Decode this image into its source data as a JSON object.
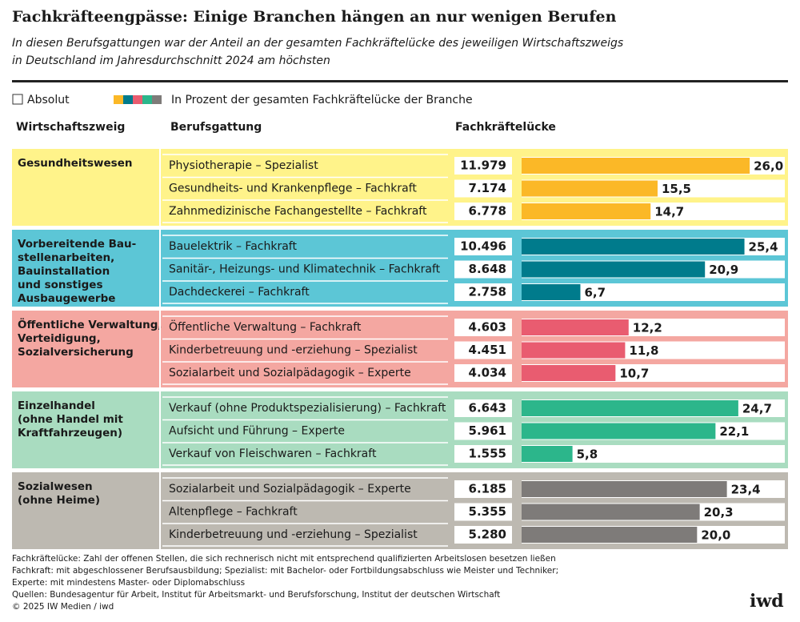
{
  "chart_data": {
    "type": "bar",
    "title": "Fachkräfteengpässe: Einige Branchen hängen an nur wenigen Berufen",
    "subtitle": [
      "In diesen Berufsgattungen war der Anteil an der gesamten Fachkräftelücke des jeweiligen Wirtschaftszweigs",
      "in Deutschland im Jahresdurchschnitt 2024 am höchsten"
    ],
    "legend": {
      "absolute": "Absolut",
      "percent": "In Prozent der gesamten Fachkräftelücke der Branche"
    },
    "headers": [
      "Wirtschaftszweig",
      "Berufsgattung",
      "Fachkräftelücke"
    ],
    "xlim": [
      0,
      30
    ],
    "groups": [
      {
        "name": [
          "Gesundheitswesen"
        ],
        "color": "#fbb827",
        "background": "#fff38a",
        "categories": [
          "Physiotherapie – Spezialist",
          "Gesundheits- und Krankenpflege – Fachkraft",
          "Zahnmedizinische Fachangestellte – Fachkraft"
        ],
        "absolute": [
          "11.979",
          "7.174",
          "6.778"
        ],
        "values": [
          26.0,
          15.5,
          14.7
        ],
        "value_labels": [
          "26,0",
          "15,5",
          "14,7"
        ]
      },
      {
        "name": [
          "Vorbereitende Bau-",
          "stellenarbeiten,",
          "Bauinstallation",
          "und sonstiges",
          "Ausbaugewerbe"
        ],
        "color": "#007b8c",
        "background": "#5cc6d6",
        "categories": [
          "Bauelektrik – Fachkraft",
          "Sanitär-, Heizungs- und Klimatechnik – Fachkraft",
          "Dachdeckerei – Fachkraft"
        ],
        "absolute": [
          "10.496",
          "8.648",
          "2.758"
        ],
        "values": [
          25.4,
          20.9,
          6.7
        ],
        "value_labels": [
          "25,4",
          "20,9",
          "6,7"
        ]
      },
      {
        "name": [
          "Öffentliche Verwaltung,",
          "Verteidigung,",
          "Sozialversicherung"
        ],
        "color": "#e95c70",
        "background": "#f4a7a1",
        "categories": [
          "Öffentliche Verwaltung – Fachkraft",
          "Kinderbetreuung und -erziehung – Spezialist",
          "Sozialarbeit und Sozialpädagogik – Experte"
        ],
        "absolute": [
          "4.603",
          "4.451",
          "4.034"
        ],
        "values": [
          12.2,
          11.8,
          10.7
        ],
        "value_labels": [
          "12,2",
          "11,8",
          "10,7"
        ]
      },
      {
        "name": [
          "Einzelhandel",
          "(ohne Handel mit",
          "Kraftfahrzeugen)"
        ],
        "color": "#2cb68b",
        "background": "#a9dcc0",
        "categories": [
          "Verkauf (ohne Produktspezialisierung) – Fachkraft",
          "Aufsicht und Führung – Experte",
          "Verkauf von Fleischwaren – Fachkraft"
        ],
        "absolute": [
          "6.643",
          "5.961",
          "1.555"
        ],
        "values": [
          24.7,
          22.1,
          5.8
        ],
        "value_labels": [
          "24,7",
          "22,1",
          "5,8"
        ]
      },
      {
        "name": [
          "Sozialwesen",
          "(ohne Heime)"
        ],
        "color": "#7e7b79",
        "background": "#bdb9b1",
        "categories": [
          "Sozialarbeit und Sozialpädagogik – Experte",
          "Altenpflege – Fachkraft",
          "Kinderbetreuung und -erziehung – Spezialist"
        ],
        "absolute": [
          "6.185",
          "5.355",
          "5.280"
        ],
        "values": [
          23.4,
          20.3,
          20.0
        ],
        "value_labels": [
          "23,4",
          "20,3",
          "20,0"
        ]
      }
    ],
    "notes": [
      "Fachkräftelücke: Zahl der offenen Stellen, die sich rechnerisch nicht mit entsprechend qualifizierten Arbeitslosen besetzen ließen",
      "Fachkraft: mit abgeschlossener Berufsausbildung; Spezialist: mit Bachelor- oder Fortbildungsabschluss wie Meister und Techniker;",
      "Experte: mit mindestens Master- oder Diplomabschluss",
      "Quellen: Bundesagentur für Arbeit, Institut für Arbeitsmarkt- und Berufsforschung, Institut der deutschen Wirtschaft",
      "© 2025 IW Medien / iwd"
    ],
    "logo": "iwd"
  }
}
